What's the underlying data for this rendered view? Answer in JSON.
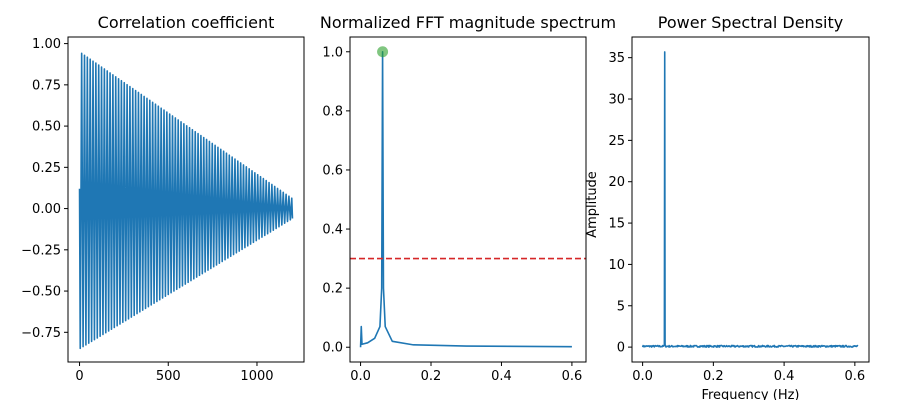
{
  "chart_data": [
    {
      "type": "line",
      "title": "Correlation coefficient",
      "xlabel": "",
      "ylabel": "",
      "xlim": [
        -65,
        1265
      ],
      "ylim": [
        -0.93,
        1.04
      ],
      "xticks": [
        0,
        500,
        1000
      ],
      "yticks": [
        -0.75,
        -0.5,
        -0.25,
        0.0,
        0.25,
        0.5,
        0.75,
        1.0
      ],
      "ytick_labels": [
        "−0.75",
        "−0.50",
        "−0.25",
        "0.00",
        "0.25",
        "0.50",
        "0.75",
        "1.00"
      ],
      "series": [
        {
          "color": "#1f77b4",
          "kind": "damped-oscillation",
          "x_range": [
            0,
            1200
          ],
          "period": 16,
          "envelope_start": 0.95,
          "envelope_end": 0.06,
          "start_value": 0.12
        }
      ]
    },
    {
      "type": "line",
      "title": "Normalized FFT magnitude spectrum",
      "xlabel": "",
      "ylabel": "",
      "xlim": [
        -0.03,
        0.64
      ],
      "ylim": [
        -0.05,
        1.05
      ],
      "xticks": [
        0.0,
        0.2,
        0.4,
        0.6
      ],
      "xtick_labels": [
        "0.0",
        "0.2",
        "0.4",
        "0.6"
      ],
      "yticks": [
        0.0,
        0.2,
        0.4,
        0.6,
        0.8,
        1.0
      ],
      "ytick_labels": [
        "0.0",
        "0.2",
        "0.4",
        "0.6",
        "0.8",
        "1.0"
      ],
      "series": [
        {
          "color": "#1f77b4",
          "points": [
            [
              0.0,
              0.0
            ],
            [
              0.002,
              0.07
            ],
            [
              0.004,
              0.01
            ],
            [
              0.02,
              0.015
            ],
            [
              0.04,
              0.03
            ],
            [
              0.055,
              0.07
            ],
            [
              0.06,
              0.2
            ],
            [
              0.0625,
              1.0
            ],
            [
              0.065,
              0.2
            ],
            [
              0.07,
              0.07
            ],
            [
              0.09,
              0.02
            ],
            [
              0.15,
              0.008
            ],
            [
              0.3,
              0.004
            ],
            [
              0.6,
              0.002
            ]
          ]
        }
      ],
      "threshold": {
        "y": 0.3,
        "color": "#d62728",
        "style": "dashed"
      },
      "peak_marker": {
        "x": 0.0625,
        "y": 1.0,
        "color": "#2ca02c"
      }
    },
    {
      "type": "line",
      "title": "Power Spectral Density",
      "xlabel": "Frequency (Hz)",
      "ylabel": "Amplitude",
      "xlim": [
        -0.03,
        0.64
      ],
      "ylim": [
        -1.8,
        37.5
      ],
      "xticks": [
        0.0,
        0.2,
        0.4,
        0.6
      ],
      "xtick_labels": [
        "0.0",
        "0.2",
        "0.4",
        "0.6"
      ],
      "yticks": [
        0,
        5,
        10,
        15,
        20,
        25,
        30,
        35
      ],
      "series": [
        {
          "color": "#1f77b4",
          "points": [
            [
              0.0,
              0.2
            ],
            [
              0.06,
              0.3
            ],
            [
              0.0625,
              35.7
            ],
            [
              0.065,
              0.3
            ],
            [
              0.61,
              0.1
            ]
          ],
          "noise_level": 0.2
        }
      ]
    }
  ]
}
